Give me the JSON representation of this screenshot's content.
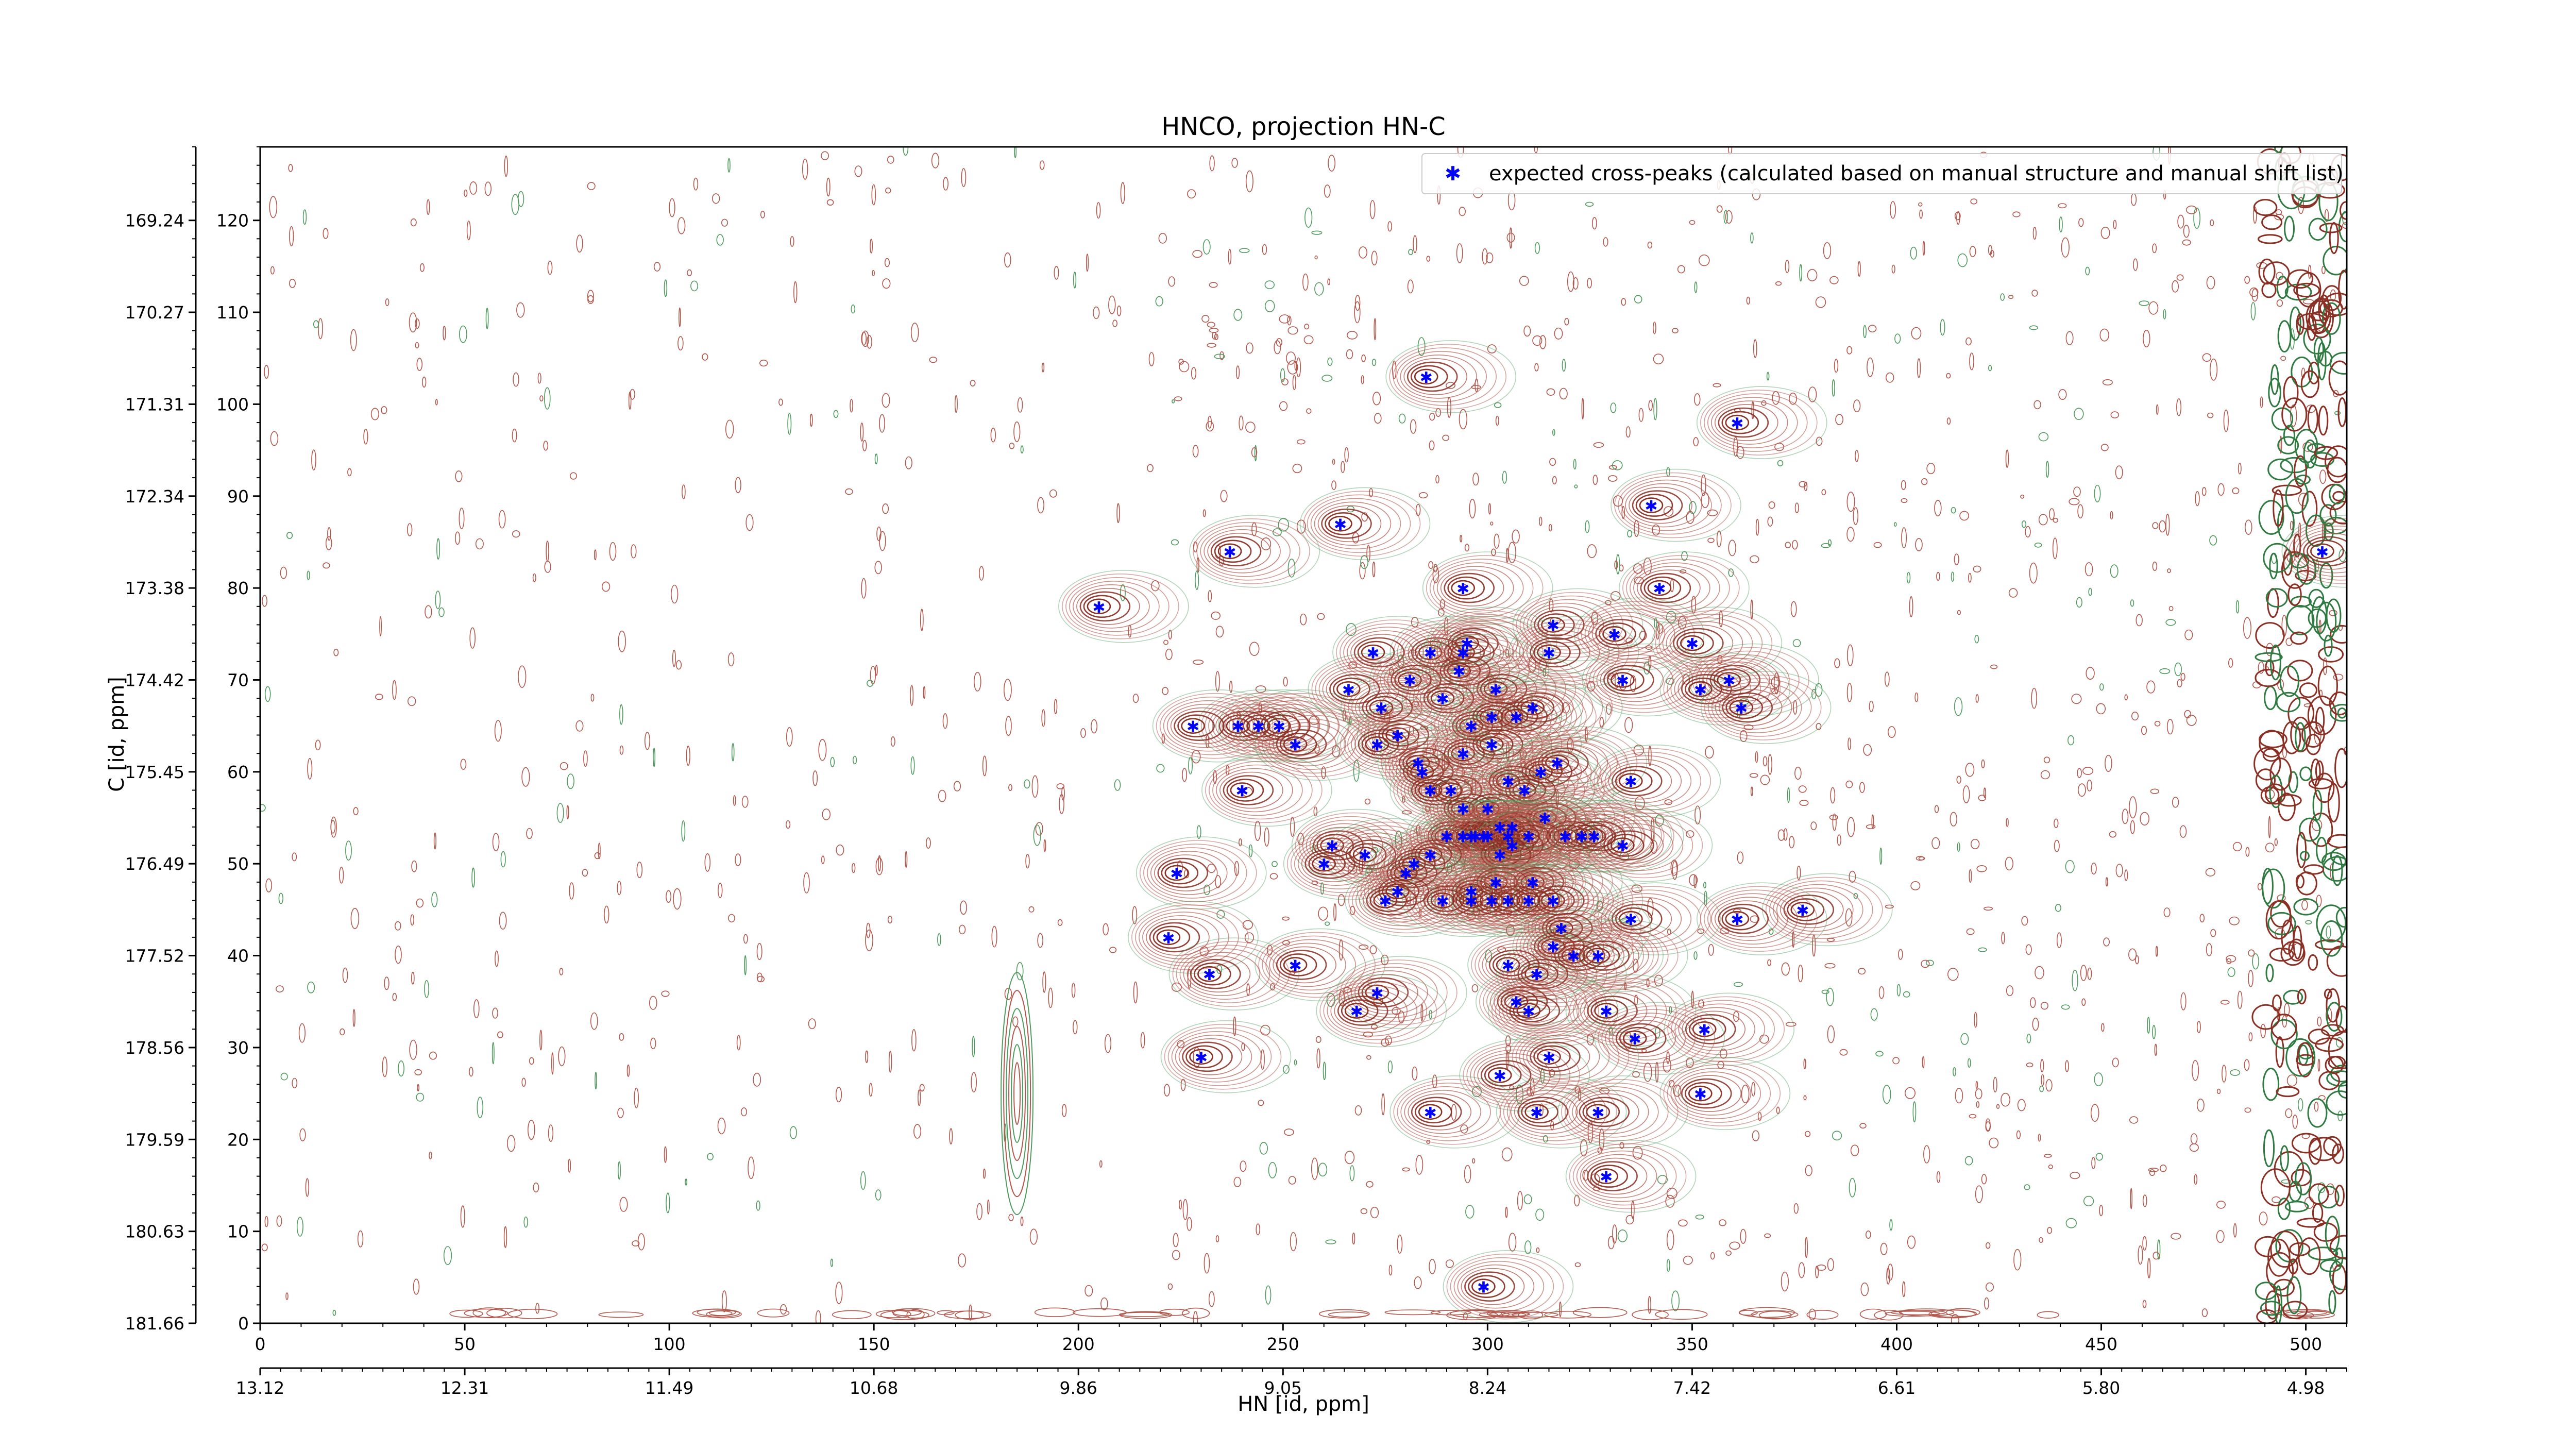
{
  "chart_data": {
    "type": "scatter",
    "title": "HNCO, projection HN-C",
    "xlabel": "HN [id, ppm]",
    "ylabel": "C [id, ppm]",
    "xlim": [
      0,
      510
    ],
    "ylim": [
      0,
      128
    ],
    "x_ticks": [
      0,
      50,
      100,
      150,
      200,
      250,
      300,
      350,
      400,
      450,
      500
    ],
    "y_ticks": [
      0,
      10,
      20,
      30,
      40,
      50,
      60,
      70,
      80,
      90,
      100,
      110,
      120
    ],
    "secondary_x_ticks": [
      {
        "at": 0,
        "label": "13.12"
      },
      {
        "at": 50,
        "label": "12.31"
      },
      {
        "at": 100,
        "label": "11.49"
      },
      {
        "at": 150,
        "label": "10.68"
      },
      {
        "at": 200,
        "label": "9.86"
      },
      {
        "at": 250,
        "label": "9.05"
      },
      {
        "at": 300,
        "label": "8.24"
      },
      {
        "at": 350,
        "label": "7.42"
      },
      {
        "at": 400,
        "label": "6.61"
      },
      {
        "at": 450,
        "label": "5.80"
      },
      {
        "at": 500,
        "label": "4.98"
      }
    ],
    "secondary_y_ticks": [
      {
        "at": 0,
        "label": "181.66"
      },
      {
        "at": 10,
        "label": "180.63"
      },
      {
        "at": 20,
        "label": "179.59"
      },
      {
        "at": 30,
        "label": "178.56"
      },
      {
        "at": 40,
        "label": "177.52"
      },
      {
        "at": 50,
        "label": "176.49"
      },
      {
        "at": 60,
        "label": "175.45"
      },
      {
        "at": 70,
        "label": "174.42"
      },
      {
        "at": 80,
        "label": "173.38"
      },
      {
        "at": 90,
        "label": "172.34"
      },
      {
        "at": 100,
        "label": "171.31"
      },
      {
        "at": 110,
        "label": "170.27"
      },
      {
        "at": 120,
        "label": "169.24"
      }
    ],
    "grid": false,
    "legend_position": "top-right",
    "series": [
      {
        "name": "expected cross-peaks (calculated based on manual structure and manual shift list)",
        "color": "#0000ff",
        "marker": "star",
        "points": [
          [
            285,
            103
          ],
          [
            361,
            98
          ],
          [
            340,
            89
          ],
          [
            264,
            87
          ],
          [
            237,
            84
          ],
          [
            294,
            80
          ],
          [
            342,
            80
          ],
          [
            205,
            78
          ],
          [
            316,
            76
          ],
          [
            286,
            73
          ],
          [
            295,
            74
          ],
          [
            294,
            73
          ],
          [
            331,
            75
          ],
          [
            350,
            74
          ],
          [
            272,
            73
          ],
          [
            315,
            73
          ],
          [
            293,
            71
          ],
          [
            302,
            69
          ],
          [
            281,
            70
          ],
          [
            333,
            70
          ],
          [
            359,
            70
          ],
          [
            266,
            69
          ],
          [
            352,
            69
          ],
          [
            311,
            67
          ],
          [
            289,
            68
          ],
          [
            274,
            67
          ],
          [
            362,
            67
          ],
          [
            239,
            65
          ],
          [
            244,
            65
          ],
          [
            228,
            65
          ],
          [
            249,
            65
          ],
          [
            296,
            65
          ],
          [
            301,
            66
          ],
          [
            307,
            66
          ],
          [
            253,
            63
          ],
          [
            278,
            64
          ],
          [
            273,
            63
          ],
          [
            301,
            63
          ],
          [
            294,
            62
          ],
          [
            283,
            61
          ],
          [
            317,
            61
          ],
          [
            313,
            60
          ],
          [
            284,
            60
          ],
          [
            291,
            58
          ],
          [
            305,
            59
          ],
          [
            335,
            59
          ],
          [
            240,
            58
          ],
          [
            309,
            58
          ],
          [
            286,
            58
          ],
          [
            294,
            56
          ],
          [
            300,
            56
          ],
          [
            314,
            55
          ],
          [
            303,
            54
          ],
          [
            306,
            54
          ],
          [
            290,
            53
          ],
          [
            294,
            53
          ],
          [
            296,
            53
          ],
          [
            297,
            53
          ],
          [
            299,
            53
          ],
          [
            300,
            53
          ],
          [
            305,
            53
          ],
          [
            310,
            53
          ],
          [
            319,
            53
          ],
          [
            323,
            53
          ],
          [
            326,
            53
          ],
          [
            306,
            52
          ],
          [
            333,
            52
          ],
          [
            262,
            52
          ],
          [
            303,
            51
          ],
          [
            286,
            51
          ],
          [
            270,
            51
          ],
          [
            260,
            50
          ],
          [
            282,
            50
          ],
          [
            280,
            49
          ],
          [
            224,
            49
          ],
          [
            302,
            48
          ],
          [
            311,
            48
          ],
          [
            278,
            47
          ],
          [
            296,
            47
          ],
          [
            275,
            46
          ],
          [
            289,
            46
          ],
          [
            296,
            46
          ],
          [
            301,
            46
          ],
          [
            305,
            46
          ],
          [
            310,
            46
          ],
          [
            316,
            46
          ],
          [
            377,
            45
          ],
          [
            335,
            44
          ],
          [
            318,
            43
          ],
          [
            361,
            44
          ],
          [
            222,
            42
          ],
          [
            316,
            41
          ],
          [
            321,
            40
          ],
          [
            327,
            40
          ],
          [
            305,
            39
          ],
          [
            312,
            38
          ],
          [
            232,
            38
          ],
          [
            253,
            39
          ],
          [
            273,
            36
          ],
          [
            307,
            35
          ],
          [
            310,
            34
          ],
          [
            268,
            34
          ],
          [
            329,
            34
          ],
          [
            353,
            32
          ],
          [
            336,
            31
          ],
          [
            230,
            29
          ],
          [
            315,
            29
          ],
          [
            303,
            27
          ],
          [
            352,
            25
          ],
          [
            286,
            23
          ],
          [
            312,
            23
          ],
          [
            327,
            23
          ],
          [
            329,
            16
          ],
          [
            299,
            4
          ],
          [
            504,
            84
          ]
        ]
      }
    ]
  }
}
